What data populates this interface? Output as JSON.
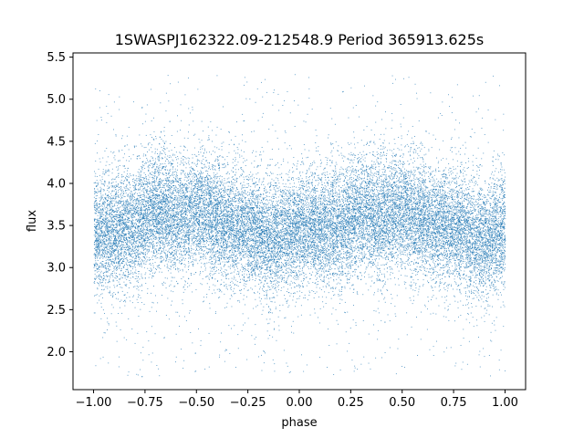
{
  "chart_data": {
    "type": "scatter",
    "title": "1SWASPJ162322.09-212548.9 Period 365913.625s",
    "xlabel": "phase",
    "ylabel": "flux",
    "xlim": [
      -1.1,
      1.1
    ],
    "ylim": [
      1.55,
      5.55
    ],
    "x_ticks": [
      -1.0,
      -0.75,
      -0.5,
      -0.25,
      0.0,
      0.25,
      0.5,
      0.75,
      1.0
    ],
    "x_tick_labels": [
      "−1.00",
      "−0.75",
      "−0.50",
      "−0.25",
      "0.00",
      "0.25",
      "0.50",
      "0.75",
      "1.00"
    ],
    "y_ticks": [
      2.0,
      2.5,
      3.0,
      3.5,
      4.0,
      4.5,
      5.0,
      5.5
    ],
    "y_tick_labels": [
      "2.0",
      "2.5",
      "3.0",
      "3.5",
      "4.0",
      "4.5",
      "5.0",
      "5.5"
    ],
    "grid": false,
    "marker_color": "#1f77b4",
    "series": [
      {
        "phase_range": [
          -1.0,
          1.0
        ],
        "flux_center_by_phase": [
          [
            -1.0,
            3.45
          ],
          [
            -0.9,
            3.4
          ],
          [
            -0.8,
            3.5
          ],
          [
            -0.7,
            3.7
          ],
          [
            -0.6,
            3.6
          ],
          [
            -0.5,
            3.7
          ],
          [
            -0.4,
            3.55
          ],
          [
            -0.3,
            3.5
          ],
          [
            -0.2,
            3.4
          ],
          [
            -0.15,
            3.3
          ],
          [
            -0.1,
            3.35
          ],
          [
            0.0,
            3.5
          ],
          [
            0.1,
            3.45
          ],
          [
            0.2,
            3.5
          ],
          [
            0.3,
            3.65
          ],
          [
            0.4,
            3.6
          ],
          [
            0.5,
            3.7
          ],
          [
            0.6,
            3.55
          ],
          [
            0.7,
            3.5
          ],
          [
            0.8,
            3.45
          ],
          [
            0.85,
            3.3
          ],
          [
            0.9,
            3.35
          ],
          [
            1.0,
            3.45
          ]
        ],
        "typical_flux_spread": 0.35,
        "flux_min": 1.7,
        "flux_max": 5.3,
        "point_count": 24000
      }
    ]
  }
}
